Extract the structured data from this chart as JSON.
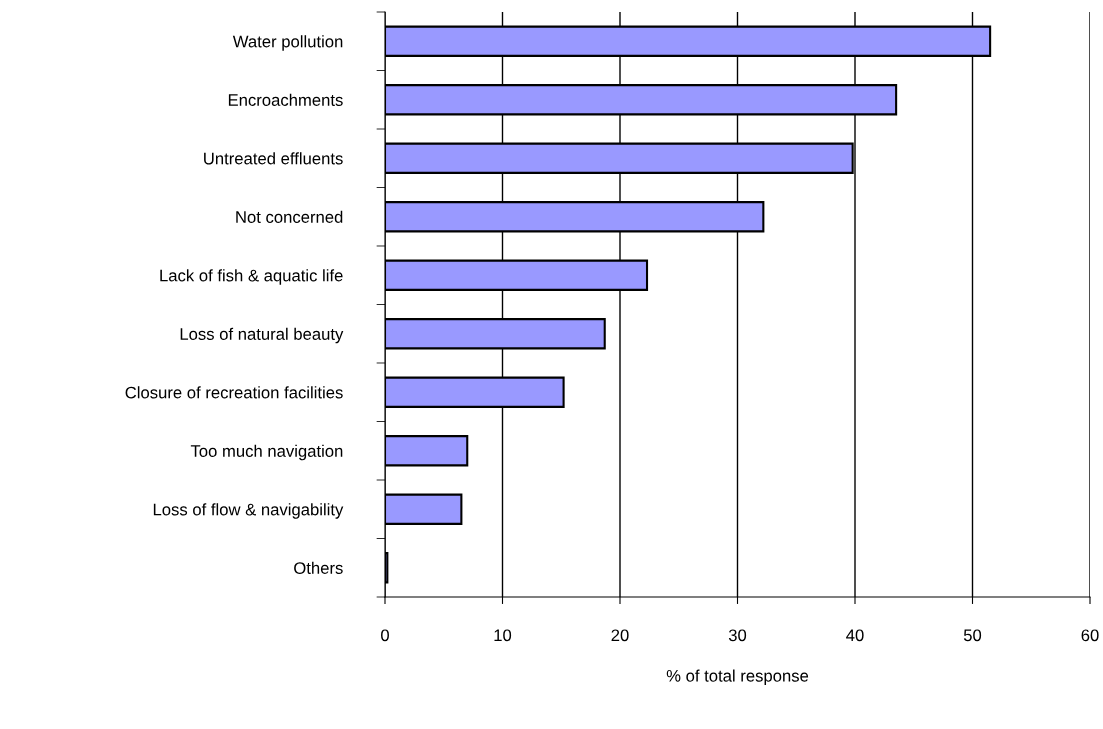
{
  "chart_data": {
    "type": "bar",
    "orientation": "horizontal",
    "xlabel": "% of total response",
    "categories": [
      "Water pollution",
      "Encroachments",
      "Untreated effluents",
      "Not concerned",
      "Lack of fish & aquatic life",
      "Loss of natural beauty",
      "Closure of recreation facilities",
      "Too much navigation",
      "Loss of flow & navigability",
      "Others"
    ],
    "values": [
      51.5,
      43.5,
      39.8,
      32.2,
      22.3,
      18.7,
      15.2,
      7.0,
      6.5,
      0.2
    ],
    "color": "#9999ff",
    "xlim": [
      0,
      60
    ],
    "xticks": [
      0,
      10,
      20,
      30,
      40,
      50,
      60
    ],
    "grid": "x"
  }
}
